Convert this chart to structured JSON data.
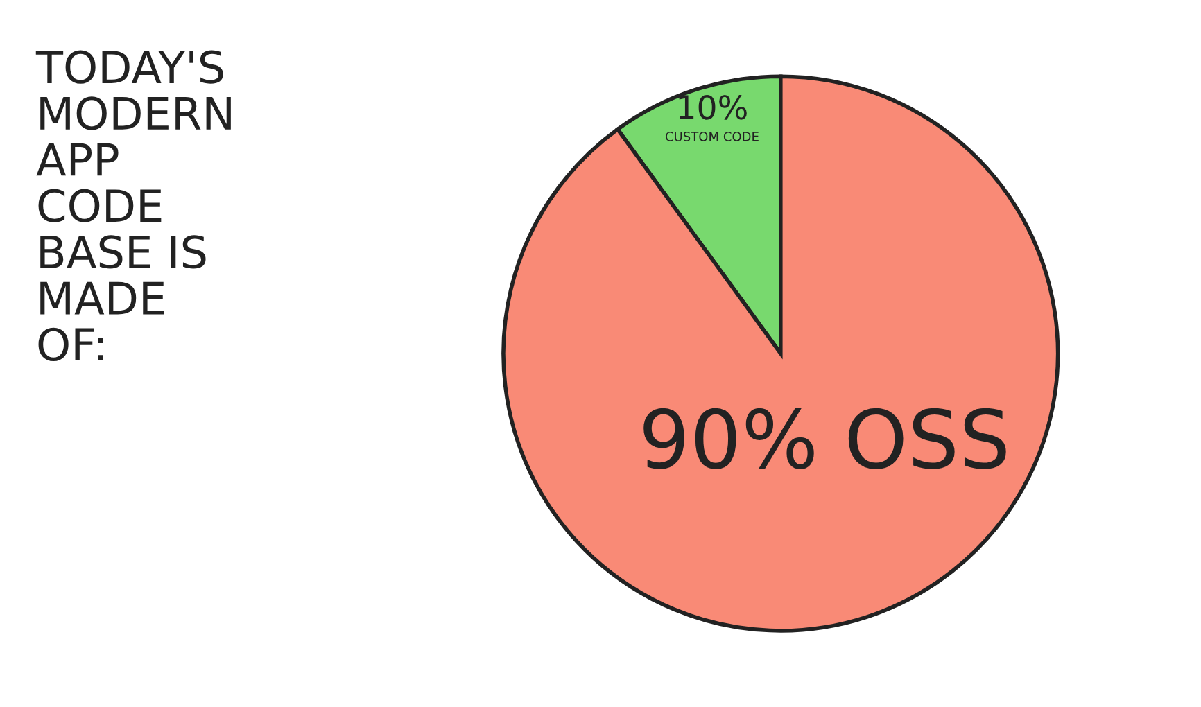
{
  "chart_data": {
    "type": "pie",
    "title": "TODAY'S\nMODERN\nAPP\nCODE\nBASE IS\nMADE\nOF:",
    "categories": [
      "CUSTOM CODE",
      "OSS"
    ],
    "values": [
      10,
      90
    ],
    "value_labels": [
      "10%",
      "90%"
    ],
    "colors": [
      "#78d96e",
      "#f98a76"
    ]
  }
}
